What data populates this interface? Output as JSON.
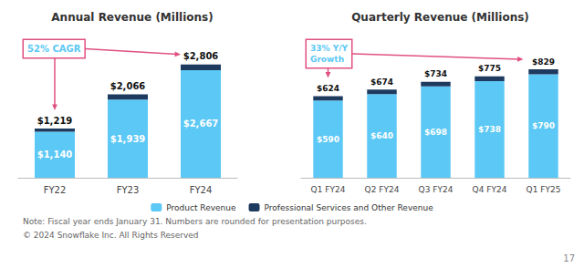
{
  "chart_data": [
    {
      "type": "bar",
      "title": "Annual Revenue (Millions)",
      "categories": [
        "FY22",
        "FY23",
        "FY24"
      ],
      "series": [
        {
          "name": "Product Revenue",
          "color": "#5BC8F5",
          "values": [
            1140,
            1939,
            2667
          ],
          "data_labels": true,
          "value_labels": [
            "$1,140",
            "$1,939",
            "$2,667"
          ]
        },
        {
          "name": "Professional Services and Other Revenue",
          "color": "#1E3A5F",
          "values": [
            79,
            127,
            139
          ]
        }
      ],
      "totals": [
        1219,
        2066,
        2806
      ],
      "total_labels": [
        "$1,219",
        "$2,066",
        "$2,806"
      ],
      "stacked": true,
      "ylim": [
        0,
        3500
      ],
      "tick_labels": "x",
      "grid": false,
      "legend": "bottom",
      "annotation": {
        "text": "52% CAGR",
        "points_to": [
          "FY24",
          "FY22"
        ],
        "color": "#e05080",
        "text_color": "#5BC8F5"
      }
    },
    {
      "type": "bar",
      "title": "Quarterly Revenue (Millions)",
      "categories": [
        "Q1 FY24",
        "Q2 FY24",
        "Q3 FY24",
        "Q4 FY24",
        "Q1 FY25"
      ],
      "series": [
        {
          "name": "Product Revenue",
          "color": "#5BC8F5",
          "values": [
            590,
            640,
            698,
            738,
            790
          ],
          "data_labels": true,
          "value_labels": [
            "$590",
            "$640",
            "$698",
            "$738",
            "$790"
          ]
        },
        {
          "name": "Professional Services and Other Revenue",
          "color": "#1E3A5F",
          "values": [
            34,
            34,
            36,
            37,
            39
          ]
        }
      ],
      "totals": [
        624,
        674,
        734,
        775,
        829
      ],
      "total_labels": [
        "$624",
        "$674",
        "$734",
        "$775",
        "$829"
      ],
      "stacked": true,
      "ylim": [
        0,
        1080
      ],
      "tick_labels": "x",
      "grid": false,
      "legend": "bottom",
      "annotation": {
        "text": "33% Y/Y\nGrowth",
        "points_to": [
          "Q1 FY25",
          "Q1 FY24"
        ],
        "color": "#e05080",
        "text_color": "#5BC8F5"
      }
    }
  ],
  "footer": [
    "Note: Fiscal year ends January 31. Numbers are rounded for presentation purposes.",
    "© 2024 Snowflake Inc. All Rights Reserved"
  ],
  "page_number": "17"
}
